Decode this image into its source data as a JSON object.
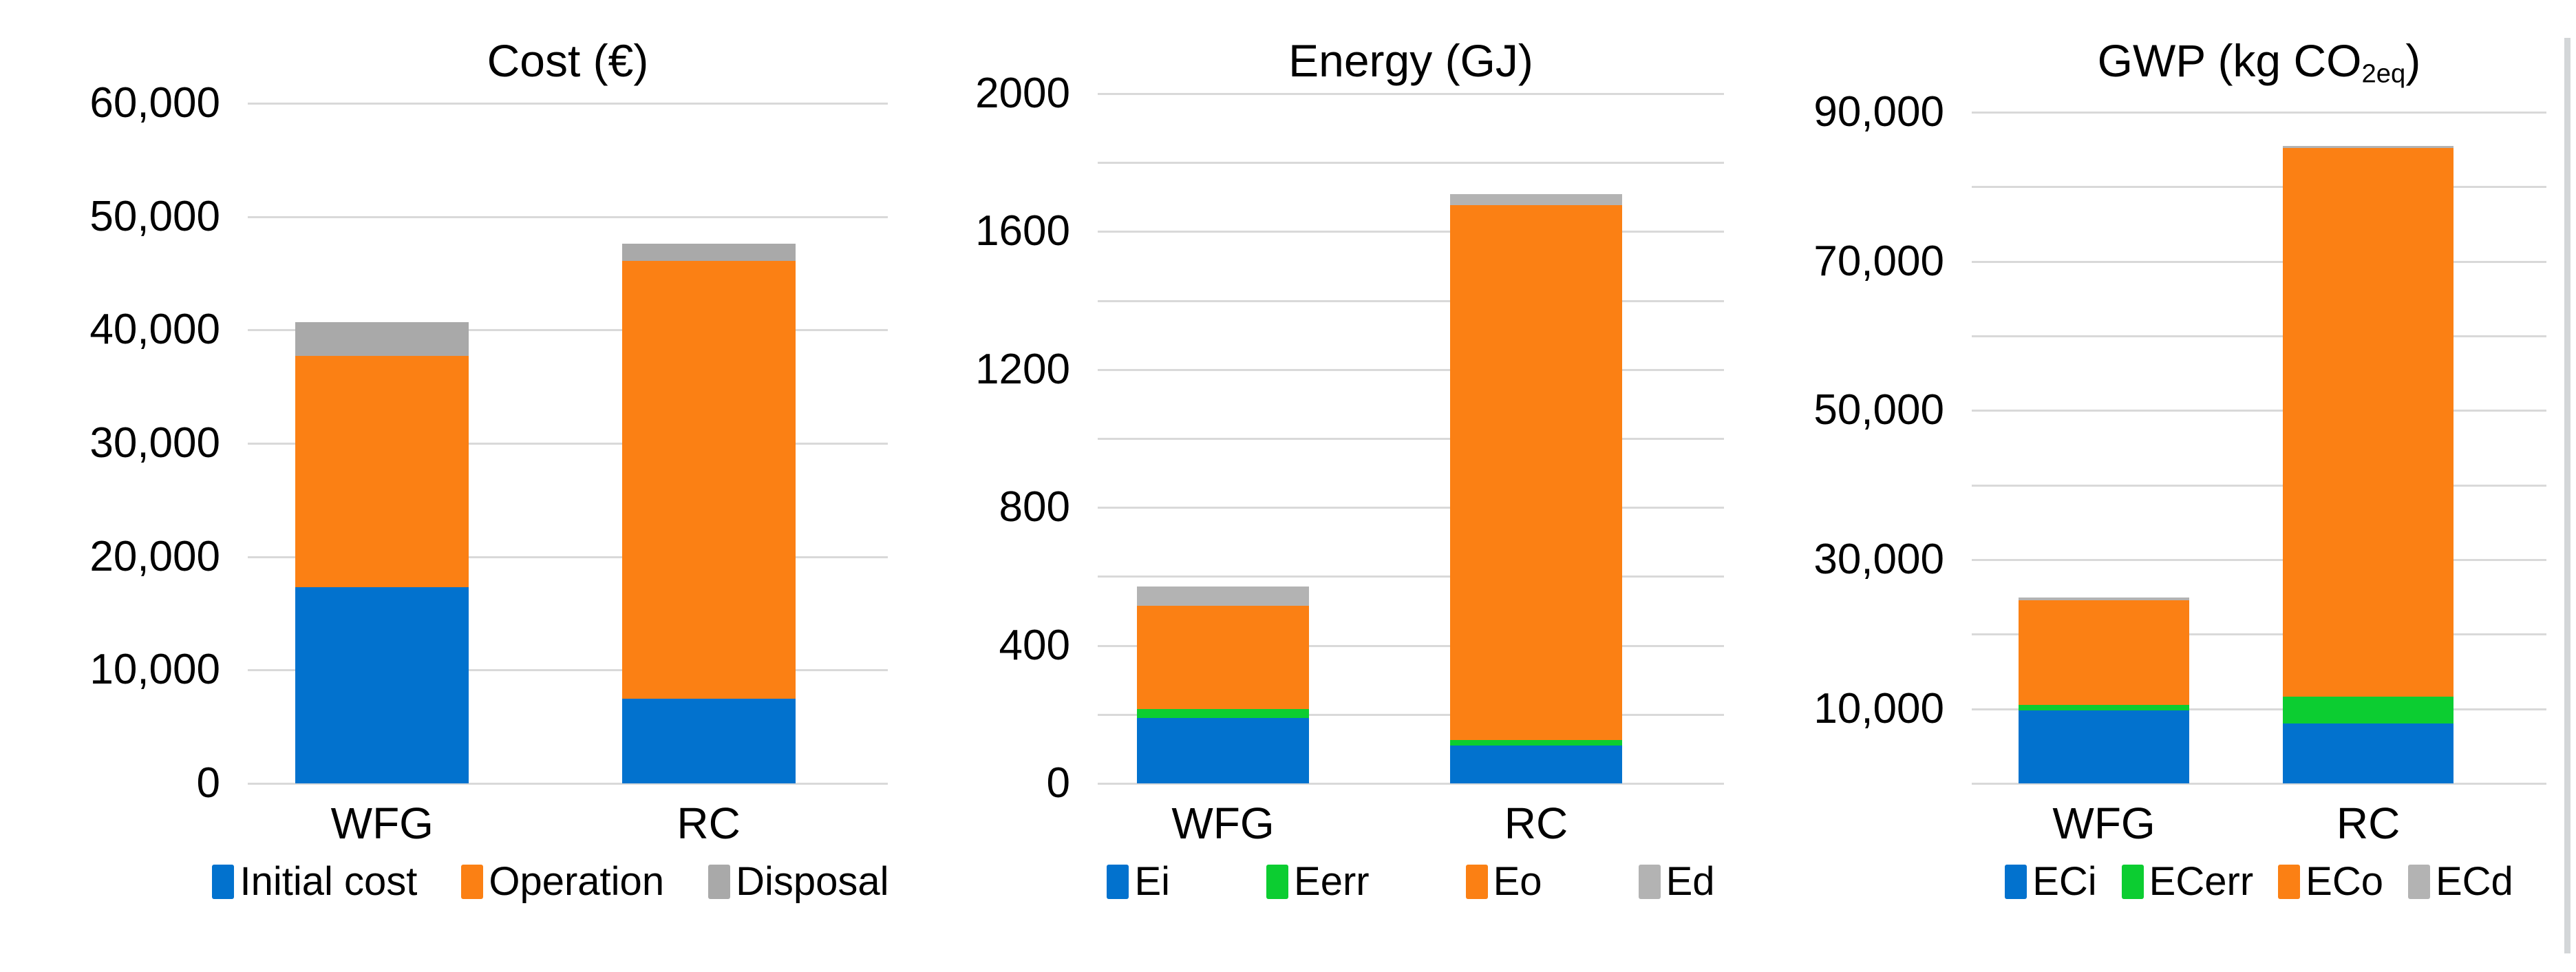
{
  "figure_background": "#ffffff",
  "grid_color": "#d9d9d9",
  "text_color": "#000000",
  "chart_data": [
    {
      "type": "bar",
      "stacked": true,
      "title_main": "Cost (€)",
      "title_sub": "",
      "title_end": "",
      "categories": [
        "WFG",
        "RC"
      ],
      "series": [
        {
          "name": "Initial cost",
          "color": "#0272ce",
          "values": [
            17300,
            7450
          ]
        },
        {
          "name": "Operation",
          "color": "#fb8014",
          "values": [
            20400,
            38650
          ]
        },
        {
          "name": "Disposal",
          "color": "#a9a9a9",
          "values": [
            3000,
            1500
          ]
        }
      ],
      "totals": [
        40700,
        47600
      ],
      "xlabel": "",
      "ylabel": "",
      "ylim": [
        0,
        60000
      ],
      "grid_step": 10000,
      "grid": true,
      "legend_position": "bottom",
      "yticks": [
        {
          "v": 0,
          "label": "0"
        },
        {
          "v": 10000,
          "label": "10,000"
        },
        {
          "v": 20000,
          "label": "20,000"
        },
        {
          "v": 30000,
          "label": "30,000"
        },
        {
          "v": 40000,
          "label": "40,000"
        },
        {
          "v": 50000,
          "label": "50,000"
        },
        {
          "v": 60000,
          "label": "60,000"
        }
      ]
    },
    {
      "type": "bar",
      "stacked": true,
      "title_main": "Energy (GJ)",
      "title_sub": "",
      "title_end": "",
      "categories": [
        "WFG",
        "RC"
      ],
      "series": [
        {
          "name": "Ei",
          "color": "#0272ce",
          "values": [
            190,
            110
          ]
        },
        {
          "name": "Eerr",
          "color": "#0ccd31",
          "values": [
            25,
            16
          ]
        },
        {
          "name": "Eo",
          "color": "#fb8014",
          "values": [
            300,
            1550
          ]
        },
        {
          "name": "Ed",
          "color": "#b3b3b3",
          "values": [
            55,
            32
          ]
        }
      ],
      "totals": [
        570,
        1708
      ],
      "xlabel": "",
      "ylabel": "",
      "ylim": [
        0,
        2000
      ],
      "grid_step": 200,
      "grid": true,
      "legend_position": "bottom",
      "yticks": [
        {
          "v": 0,
          "label": "0"
        },
        {
          "v": 400,
          "label": "400"
        },
        {
          "v": 800,
          "label": "800"
        },
        {
          "v": 1200,
          "label": "1200"
        },
        {
          "v": 1600,
          "label": "1600"
        },
        {
          "v": 2000,
          "label": "2000"
        }
      ]
    },
    {
      "type": "bar",
      "stacked": true,
      "title_main": "GWP (kg CO",
      "title_sub": "2eq",
      "title_end": ")",
      "categories": [
        "WFG",
        "RC"
      ],
      "series": [
        {
          "name": "ECi",
          "color": "#0272ce",
          "values": [
            9800,
            8000
          ]
        },
        {
          "name": "ECerr",
          "color": "#0ccd31",
          "values": [
            700,
            3600
          ]
        },
        {
          "name": "ECo",
          "color": "#fb8014",
          "values": [
            14100,
            73600
          ]
        },
        {
          "name": "ECd",
          "color": "#b3b3b3",
          "values": [
            300,
            300
          ]
        }
      ],
      "totals": [
        24900,
        85500
      ],
      "xlabel": "",
      "ylabel": "",
      "ylim": [
        0,
        90000
      ],
      "grid_step": 10000,
      "grid": true,
      "legend_position": "bottom",
      "yticks": [
        {
          "v": 10000,
          "label": "10,000"
        },
        {
          "v": 30000,
          "label": "30,000"
        },
        {
          "v": 50000,
          "label": "50,000"
        },
        {
          "v": 70000,
          "label": "70,000"
        },
        {
          "v": 90000,
          "label": "90,000"
        }
      ]
    }
  ]
}
